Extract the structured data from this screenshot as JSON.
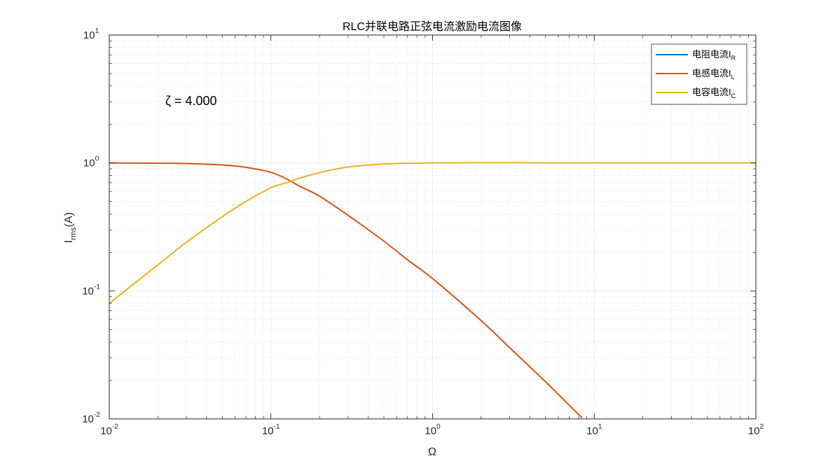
{
  "chart_data": {
    "type": "line",
    "title": "RLC并联电路正弦电流激励电流图像",
    "xlabel": "Ω",
    "ylabel_main": "I",
    "ylabel_sub": "rms",
    "ylabel_suffix": "(A)",
    "xscale": "log",
    "yscale": "log",
    "xlim": [
      0.01,
      100
    ],
    "ylim": [
      0.01,
      10
    ],
    "grid": true,
    "legend_position": "top-right",
    "x_ticks": [
      {
        "base": "10",
        "exp": "-2",
        "value": 0.01
      },
      {
        "base": "10",
        "exp": "-1",
        "value": 0.1
      },
      {
        "base": "10",
        "exp": "0",
        "value": 1
      },
      {
        "base": "10",
        "exp": "1",
        "value": 10
      },
      {
        "base": "10",
        "exp": "2",
        "value": 100
      }
    ],
    "y_ticks": [
      {
        "base": "10",
        "exp": "-2",
        "value": 0.01
      },
      {
        "base": "10",
        "exp": "-1",
        "value": 0.1
      },
      {
        "base": "10",
        "exp": "0",
        "value": 1
      },
      {
        "base": "10",
        "exp": "1",
        "value": 10
      }
    ],
    "annotation": "ζ = 4.000",
    "series": [
      {
        "name_main": "电阻电流I",
        "name_sub": "R",
        "color": "#0072BD",
        "x": [],
        "y": []
      },
      {
        "name_main": "电感电流I",
        "name_sub": "L",
        "color": "#D95319",
        "x": [
          0.01,
          0.02,
          0.03,
          0.05,
          0.07,
          0.1,
          0.125,
          0.15,
          0.2,
          0.3,
          0.5,
          0.7,
          1,
          2,
          3,
          5,
          7,
          8.4
        ],
        "y": [
          1.0,
          0.995,
          0.99,
          0.965,
          0.925,
          0.845,
          0.75,
          0.66,
          0.55,
          0.39,
          0.245,
          0.175,
          0.125,
          0.0585,
          0.036,
          0.0195,
          0.0128,
          0.0102
        ]
      },
      {
        "name_main": "电容电流I",
        "name_sub": "C",
        "color": "#EDB120",
        "x": [
          0.01,
          0.02,
          0.03,
          0.05,
          0.07,
          0.1,
          0.125,
          0.15,
          0.2,
          0.3,
          0.5,
          0.7,
          1,
          2,
          3,
          5,
          10,
          20,
          50,
          100
        ],
        "y": [
          0.08,
          0.16,
          0.24,
          0.38,
          0.5,
          0.64,
          0.7,
          0.76,
          0.84,
          0.93,
          0.98,
          0.995,
          1.0,
          1.005,
          1.005,
          1.0,
          1.0,
          1.0,
          1.0,
          1.0
        ]
      }
    ]
  }
}
